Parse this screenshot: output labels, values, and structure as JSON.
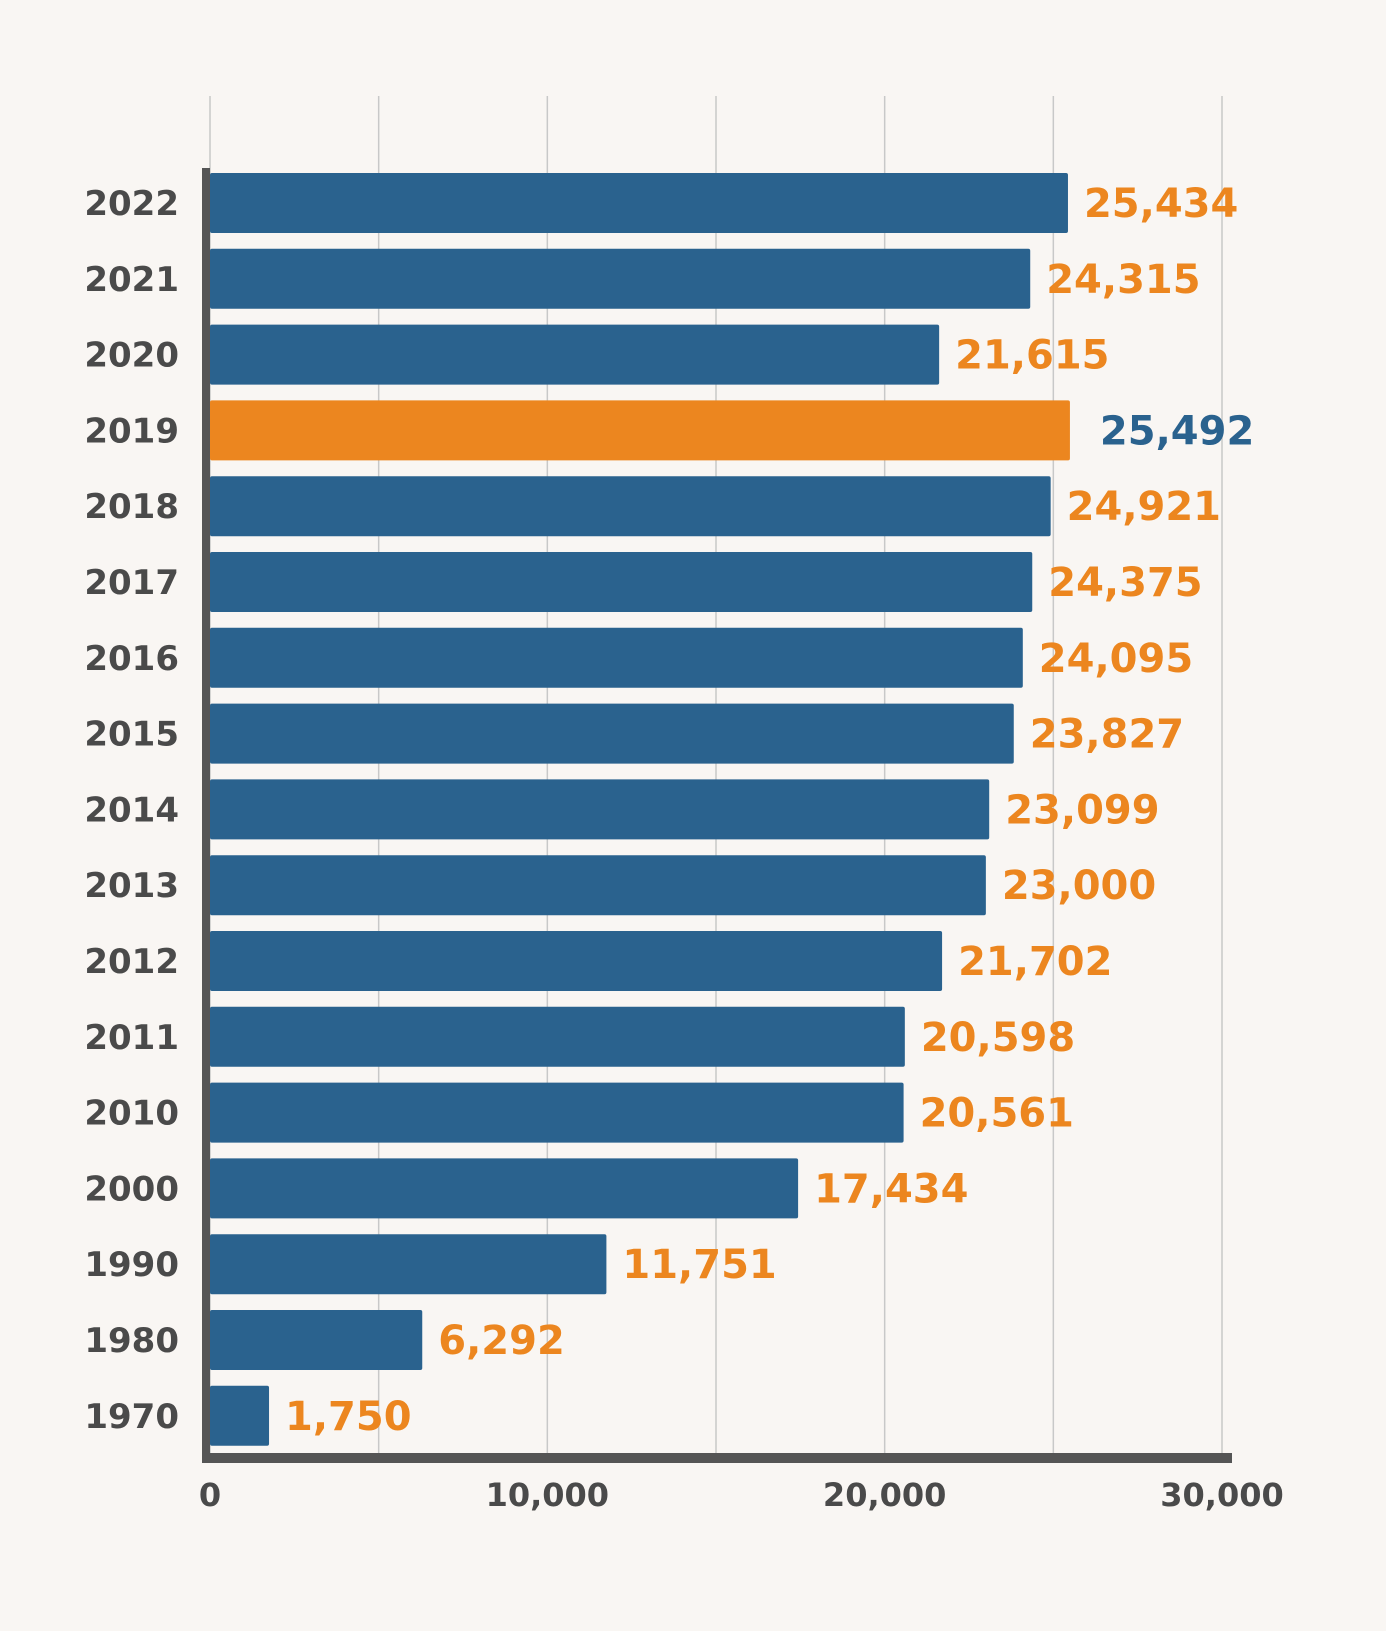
{
  "colors": {
    "background": "#f9f6f3",
    "bar": "#2a628e",
    "highlight_bar": "#ec861f",
    "value_label": "#ec861f",
    "highlight_value_label": "#2a628e",
    "axis": "#555555",
    "gridline": "#c8c8c8",
    "text": "#4a4a4a"
  },
  "chart_data": {
    "type": "bar",
    "orientation": "horizontal",
    "title": "",
    "xlabel": "",
    "ylabel": "",
    "xlim": [
      0,
      30000
    ],
    "x_ticks": [
      0,
      10000,
      20000,
      30000
    ],
    "x_tick_labels": [
      "0",
      "10,000",
      "20,000",
      "30,000"
    ],
    "grid": true,
    "grid_step": 5000,
    "highlight_category": "2019",
    "categories": [
      "2022",
      "2021",
      "2020",
      "2019",
      "2018",
      "2017",
      "2016",
      "2015",
      "2014",
      "2013",
      "2012",
      "2011",
      "2010",
      "2000",
      "1990",
      "1980",
      "1970"
    ],
    "values": [
      25434,
      24315,
      21615,
      25492,
      24921,
      24375,
      24095,
      23827,
      23099,
      23000,
      21702,
      20598,
      20561,
      17434,
      11751,
      6292,
      1750
    ],
    "value_labels": [
      "25,434",
      "24,315",
      "21,615",
      "25,492",
      "24,921",
      "24,375",
      "24,095",
      "23,827",
      "23,099",
      "23,000",
      "21,702",
      "20,598",
      "20,561",
      "17,434",
      "11,751",
      "6,292",
      "1,750"
    ]
  }
}
